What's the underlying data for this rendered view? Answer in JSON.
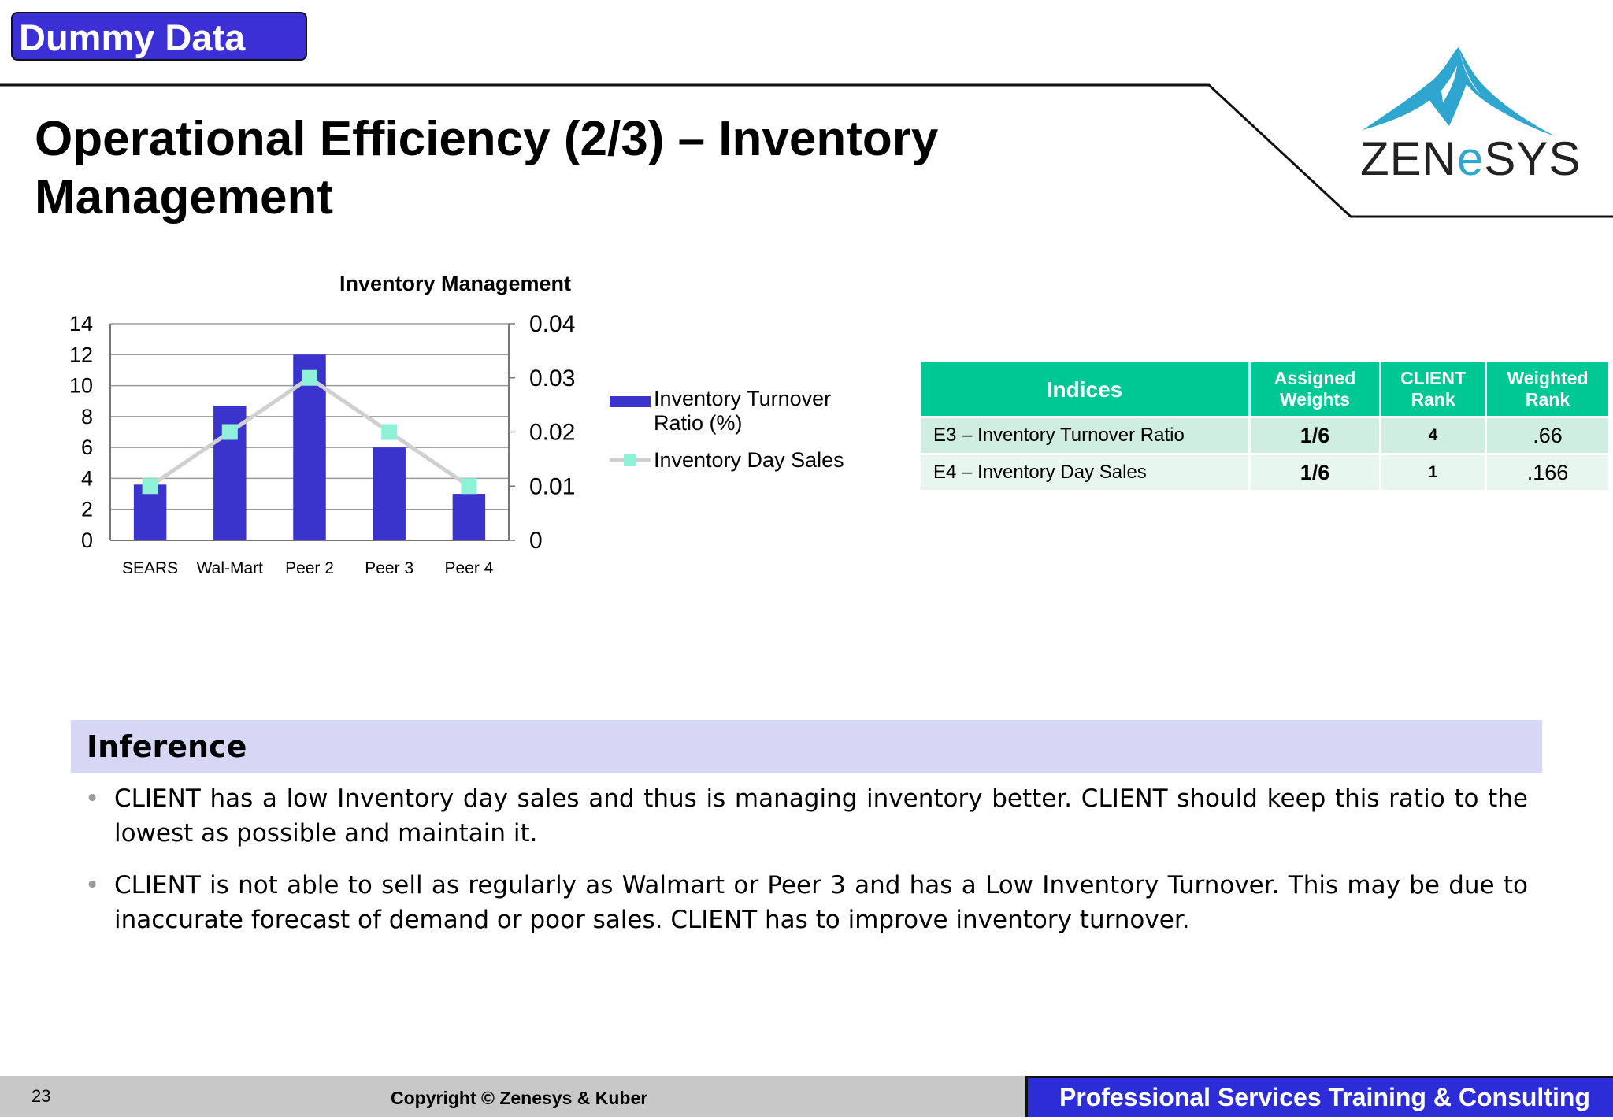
{
  "badge": "Dummy Data",
  "title": "Operational Efficiency (2/3) – Inventory Management",
  "logo": {
    "text_prefix": "ZEN",
    "text_accent": "e",
    "text_suffix": "SYS",
    "accent_color": "#2ea6cf"
  },
  "chart_data": {
    "type": "bar",
    "title": "Inventory Management",
    "categories": [
      "SEARS",
      "Wal-Mart",
      "Peer 2",
      "Peer 3",
      "Peer 4"
    ],
    "series": [
      {
        "name": "Inventory Turnover Ratio (%)",
        "type": "bar",
        "axis": "left",
        "color": "#3b34cc",
        "values": [
          3.6,
          8.7,
          12,
          6,
          3
        ]
      },
      {
        "name": "Inventory Day Sales",
        "type": "line",
        "axis": "right",
        "color": "#d0d0d0",
        "marker_color": "#8ff2d8",
        "values": [
          0.01,
          0.02,
          0.03,
          0.02,
          0.01
        ]
      }
    ],
    "y_left": {
      "ticks": [
        "0",
        "2",
        "4",
        "6",
        "8",
        "10",
        "12",
        "14"
      ],
      "ylim": [
        0,
        14
      ]
    },
    "y_right": {
      "ticks": [
        "0",
        "0.01",
        "0.02",
        "0.03",
        "0.04"
      ],
      "ylim": [
        0,
        0.04
      ]
    },
    "grid": true,
    "legend_position": "right"
  },
  "table": {
    "headers": [
      "Indices",
      "Assigned Weights",
      "CLIENT Rank",
      "Weighted Rank"
    ],
    "rows": [
      [
        "E3 – Inventory Turnover Ratio",
        "1/6",
        "4",
        ".66"
      ],
      [
        "E4 – Inventory Day Sales",
        "1/6",
        "1",
        ".166"
      ]
    ],
    "header_color": "#00c894"
  },
  "inference": {
    "title": "Inference",
    "bullets": [
      "CLIENT has a low Inventory day sales and thus is managing inventory better. CLIENT should keep this ratio to the lowest as possible and maintain it.",
      "CLIENT is not able to sell as regularly as Walmart or Peer 3 and has a Low Inventory Turnover. This may be due to inaccurate forecast of demand or poor sales. CLIENT has to improve inventory turnover."
    ]
  },
  "footer": {
    "page_number": "23",
    "copyright": "Copyright © Zenesys & Kuber",
    "tagline": "Professional Services Training & Consulting"
  }
}
